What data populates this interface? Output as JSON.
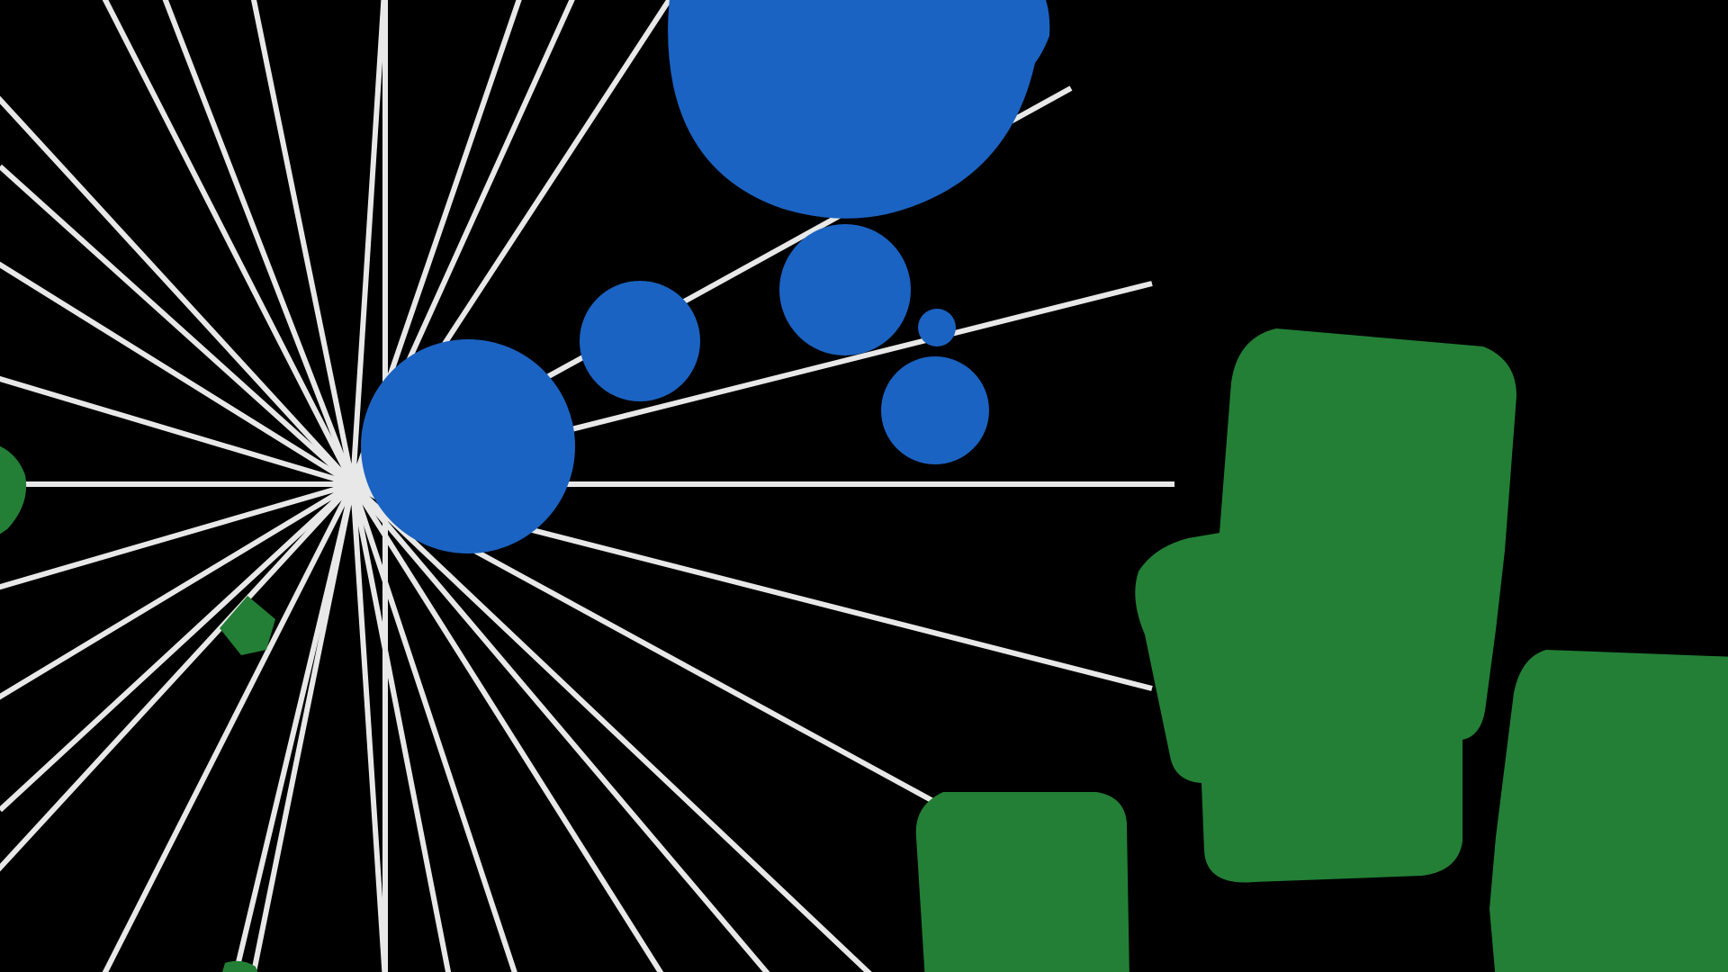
{
  "scene": {
    "background_color": "#000000",
    "ray_color": "#e8e8e8",
    "player_color": "#1b63c2",
    "enemy_color": "#237f35",
    "ray_count": 32,
    "player_cell_count": 7,
    "enemy_blob_count": 6
  }
}
